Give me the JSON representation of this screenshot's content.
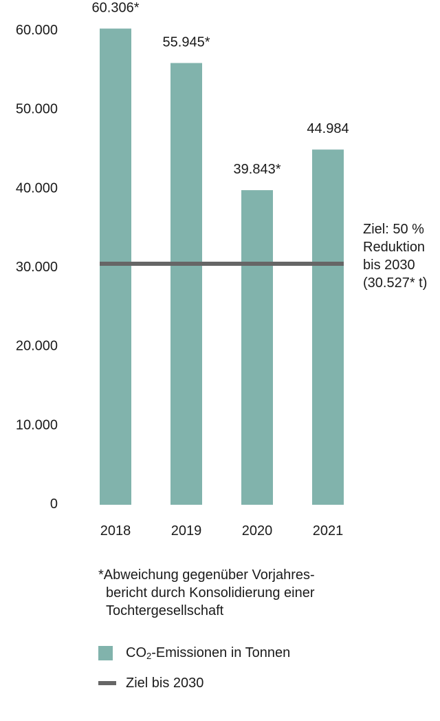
{
  "chart_data": {
    "type": "bar",
    "categories": [
      "2018",
      "2019",
      "2020",
      "2021"
    ],
    "values": [
      60306,
      55945,
      39843,
      44984
    ],
    "value_labels": [
      "60.306*",
      "55.945*",
      "39.843*",
      "44.984"
    ],
    "ylim": [
      0,
      60000
    ],
    "yticks": [
      0,
      10000,
      20000,
      30000,
      40000,
      50000,
      60000
    ],
    "ytick_labels": [
      "0",
      "10.000",
      "20.000",
      "30.000",
      "40.000",
      "50.000",
      "60.000"
    ],
    "grid": false,
    "target": {
      "value": 30527,
      "label": "Ziel: 50 %\nReduktion\nbis 2030\n(30.527* t)"
    },
    "bar_color": "#81b3ac",
    "target_color": "#666666"
  },
  "footnote": {
    "line1": "*Abweichung gegenüber Vorjahres-",
    "line2": "bericht durch Konsolidierung einer",
    "line3": "Tochtergesellschaft"
  },
  "legend": {
    "bars_prefix": "CO",
    "bars_sub": "2",
    "bars_suffix": "-Emissionen in Tonnen",
    "target": "Ziel bis 2030"
  }
}
